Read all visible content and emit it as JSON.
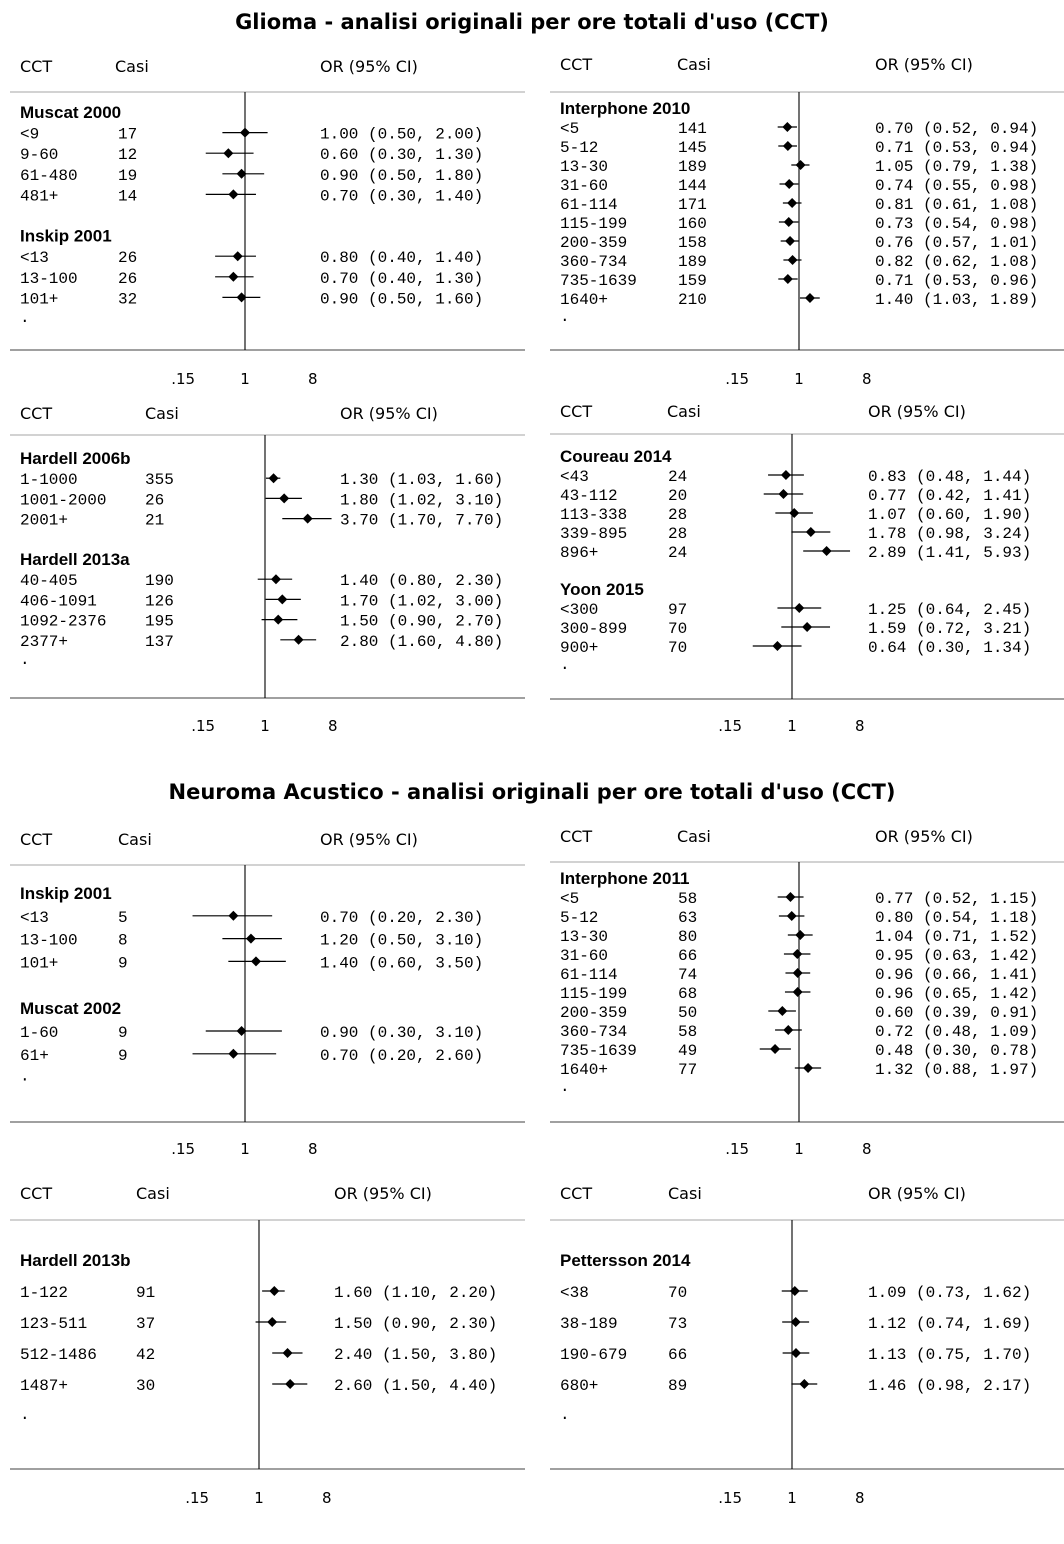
{
  "sections": [
    {
      "title": "Glioma - analisi originali per ore totali d'uso (CCT)"
    },
    {
      "title": "Neuroma Acustico - analisi originali per ore totali d'uso (CCT)"
    }
  ],
  "labels": {
    "col_category": "CCT",
    "col_cases": "Casi",
    "col_or": "OR (95% CI)",
    "filler": "."
  },
  "chart_data": [
    {
      "type": "forest",
      "section": "Glioma",
      "xscale": "log",
      "xticks": [
        ".15",
        "1",
        "8"
      ],
      "reference_line": 1,
      "groups": [
        {
          "name": "Muscat 2000",
          "rows": [
            {
              "label": "<9",
              "cases": 17,
              "or": 1.0,
              "lo": 0.5,
              "hi": 2.0,
              "text": "1.00 (0.50, 2.00)"
            },
            {
              "label": "9-60",
              "cases": 12,
              "or": 0.6,
              "lo": 0.3,
              "hi": 1.3,
              "text": "0.60 (0.30, 1.30)"
            },
            {
              "label": "61-480",
              "cases": 19,
              "or": 0.9,
              "lo": 0.5,
              "hi": 1.8,
              "text": "0.90 (0.50, 1.80)"
            },
            {
              "label": "481+",
              "cases": 14,
              "or": 0.7,
              "lo": 0.3,
              "hi": 1.4,
              "text": "0.70 (0.30, 1.40)"
            }
          ]
        },
        {
          "name": "Inskip 2001",
          "rows": [
            {
              "label": "<13",
              "cases": 26,
              "or": 0.8,
              "lo": 0.4,
              "hi": 1.4,
              "text": "0.80 (0.40, 1.40)"
            },
            {
              "label": "13-100",
              "cases": 26,
              "or": 0.7,
              "lo": 0.4,
              "hi": 1.3,
              "text": "0.70 (0.40, 1.30)"
            },
            {
              "label": "101+",
              "cases": 32,
              "or": 0.9,
              "lo": 0.5,
              "hi": 1.6,
              "text": "0.90 (0.50, 1.60)"
            }
          ]
        }
      ]
    },
    {
      "type": "forest",
      "section": "Glioma",
      "xscale": "log",
      "xticks": [
        ".15",
        "1",
        "8"
      ],
      "reference_line": 1,
      "groups": [
        {
          "name": "Interphone 2010",
          "rows": [
            {
              "label": "<5",
              "cases": 141,
              "or": 0.7,
              "lo": 0.52,
              "hi": 0.94,
              "text": "0.70 (0.52, 0.94)"
            },
            {
              "label": "5-12",
              "cases": 145,
              "or": 0.71,
              "lo": 0.53,
              "hi": 0.94,
              "text": "0.71 (0.53, 0.94)"
            },
            {
              "label": "13-30",
              "cases": 189,
              "or": 1.05,
              "lo": 0.79,
              "hi": 1.38,
              "text": "1.05 (0.79, 1.38)"
            },
            {
              "label": "31-60",
              "cases": 144,
              "or": 0.74,
              "lo": 0.55,
              "hi": 0.98,
              "text": "0.74 (0.55, 0.98)"
            },
            {
              "label": "61-114",
              "cases": 171,
              "or": 0.81,
              "lo": 0.61,
              "hi": 1.08,
              "text": "0.81 (0.61, 1.08)"
            },
            {
              "label": "115-199",
              "cases": 160,
              "or": 0.73,
              "lo": 0.54,
              "hi": 0.98,
              "text": "0.73 (0.54, 0.98)"
            },
            {
              "label": "200-359",
              "cases": 158,
              "or": 0.76,
              "lo": 0.57,
              "hi": 1.01,
              "text": "0.76 (0.57, 1.01)"
            },
            {
              "label": "360-734",
              "cases": 189,
              "or": 0.82,
              "lo": 0.62,
              "hi": 1.08,
              "text": "0.82 (0.62, 1.08)"
            },
            {
              "label": "735-1639",
              "cases": 159,
              "or": 0.71,
              "lo": 0.53,
              "hi": 0.96,
              "text": "0.71 (0.53, 0.96)"
            },
            {
              "label": "1640+",
              "cases": 210,
              "or": 1.4,
              "lo": 1.03,
              "hi": 1.89,
              "text": "1.40 (1.03, 1.89)"
            }
          ]
        }
      ]
    },
    {
      "type": "forest",
      "section": "Glioma",
      "xscale": "log",
      "xticks": [
        ".15",
        "1",
        "8"
      ],
      "reference_line": 1,
      "groups": [
        {
          "name": "Hardell 2006b",
          "rows": [
            {
              "label": "1-1000",
              "cases": 355,
              "or": 1.3,
              "lo": 1.03,
              "hi": 1.6,
              "text": "1.30 (1.03, 1.60)"
            },
            {
              "label": "1001-2000",
              "cases": 26,
              "or": 1.8,
              "lo": 1.02,
              "hi": 3.1,
              "text": "1.80 (1.02, 3.10)"
            },
            {
              "label": "2001+",
              "cases": 21,
              "or": 3.7,
              "lo": 1.7,
              "hi": 7.7,
              "text": "3.70 (1.70, 7.70)"
            }
          ]
        },
        {
          "name": "Hardell 2013a",
          "rows": [
            {
              "label": "40-405",
              "cases": 190,
              "or": 1.4,
              "lo": 0.8,
              "hi": 2.3,
              "text": "1.40 (0.80, 2.30)"
            },
            {
              "label": "406-1091",
              "cases": 126,
              "or": 1.7,
              "lo": 1.02,
              "hi": 3.0,
              "text": "1.70 (1.02, 3.00)"
            },
            {
              "label": "1092-2376",
              "cases": 195,
              "or": 1.5,
              "lo": 0.9,
              "hi": 2.7,
              "text": "1.50 (0.90, 2.70)"
            },
            {
              "label": "2377+",
              "cases": 137,
              "or": 2.8,
              "lo": 1.6,
              "hi": 4.8,
              "text": "2.80 (1.60, 4.80)"
            }
          ]
        }
      ]
    },
    {
      "type": "forest",
      "section": "Glioma",
      "xscale": "log",
      "xticks": [
        ".15",
        "1",
        "8"
      ],
      "reference_line": 1,
      "groups": [
        {
          "name": "Coureau 2014",
          "rows": [
            {
              "label": "<43",
              "cases": 24,
              "or": 0.83,
              "lo": 0.48,
              "hi": 1.44,
              "text": "0.83 (0.48, 1.44)"
            },
            {
              "label": "43-112",
              "cases": 20,
              "or": 0.77,
              "lo": 0.42,
              "hi": 1.41,
              "text": "0.77 (0.42, 1.41)"
            },
            {
              "label": "113-338",
              "cases": 28,
              "or": 1.07,
              "lo": 0.6,
              "hi": 1.9,
              "text": "1.07 (0.60, 1.90)"
            },
            {
              "label": "339-895",
              "cases": 28,
              "or": 1.78,
              "lo": 0.98,
              "hi": 3.24,
              "text": "1.78 (0.98, 3.24)"
            },
            {
              "label": "896+",
              "cases": 24,
              "or": 2.89,
              "lo": 1.41,
              "hi": 5.93,
              "text": "2.89 (1.41, 5.93)"
            }
          ]
        },
        {
          "name": "Yoon 2015",
          "rows": [
            {
              "label": "<300",
              "cases": 97,
              "or": 1.25,
              "lo": 0.64,
              "hi": 2.45,
              "text": "1.25 (0.64, 2.45)"
            },
            {
              "label": "300-899",
              "cases": 70,
              "or": 1.59,
              "lo": 0.72,
              "hi": 3.21,
              "text": "1.59 (0.72, 3.21)"
            },
            {
              "label": "900+",
              "cases": 70,
              "or": 0.64,
              "lo": 0.3,
              "hi": 1.34,
              "text": "0.64 (0.30, 1.34)"
            }
          ]
        }
      ]
    },
    {
      "type": "forest",
      "section": "Neuroma Acustico",
      "xscale": "log",
      "xticks": [
        ".15",
        "1",
        "8"
      ],
      "reference_line": 1,
      "groups": [
        {
          "name": "Inskip 2001",
          "rows": [
            {
              "label": "<13",
              "cases": 5,
              "or": 0.7,
              "lo": 0.2,
              "hi": 2.3,
              "text": "0.70 (0.20, 2.30)"
            },
            {
              "label": "13-100",
              "cases": 8,
              "or": 1.2,
              "lo": 0.5,
              "hi": 3.1,
              "text": "1.20 (0.50, 3.10)"
            },
            {
              "label": "101+",
              "cases": 9,
              "or": 1.4,
              "lo": 0.6,
              "hi": 3.5,
              "text": "1.40 (0.60, 3.50)"
            }
          ]
        },
        {
          "name": "Muscat 2002",
          "rows": [
            {
              "label": "1-60",
              "cases": 9,
              "or": 0.9,
              "lo": 0.3,
              "hi": 3.1,
              "text": "0.90 (0.30, 3.10)"
            },
            {
              "label": "61+",
              "cases": 9,
              "or": 0.7,
              "lo": 0.2,
              "hi": 2.6,
              "text": "0.70 (0.20, 2.60)"
            }
          ]
        }
      ]
    },
    {
      "type": "forest",
      "section": "Neuroma Acustico",
      "xscale": "log",
      "xticks": [
        ".15",
        "1",
        "8"
      ],
      "reference_line": 1,
      "groups": [
        {
          "name": "Interphone 2011",
          "rows": [
            {
              "label": "<5",
              "cases": 58,
              "or": 0.77,
              "lo": 0.52,
              "hi": 1.15,
              "text": "0.77 (0.52, 1.15)"
            },
            {
              "label": "5-12",
              "cases": 63,
              "or": 0.8,
              "lo": 0.54,
              "hi": 1.18,
              "text": "0.80 (0.54, 1.18)"
            },
            {
              "label": "13-30",
              "cases": 80,
              "or": 1.04,
              "lo": 0.71,
              "hi": 1.52,
              "text": "1.04 (0.71, 1.52)"
            },
            {
              "label": "31-60",
              "cases": 66,
              "or": 0.95,
              "lo": 0.63,
              "hi": 1.42,
              "text": "0.95 (0.63, 1.42)"
            },
            {
              "label": "61-114",
              "cases": 74,
              "or": 0.96,
              "lo": 0.66,
              "hi": 1.41,
              "text": "0.96 (0.66, 1.41)"
            },
            {
              "label": "115-199",
              "cases": 68,
              "or": 0.96,
              "lo": 0.65,
              "hi": 1.42,
              "text": "0.96 (0.65, 1.42)"
            },
            {
              "label": "200-359",
              "cases": 50,
              "or": 0.6,
              "lo": 0.39,
              "hi": 0.91,
              "text": "0.60 (0.39, 0.91)"
            },
            {
              "label": "360-734",
              "cases": 58,
              "or": 0.72,
              "lo": 0.48,
              "hi": 1.09,
              "text": "0.72 (0.48, 1.09)"
            },
            {
              "label": "735-1639",
              "cases": 49,
              "or": 0.48,
              "lo": 0.3,
              "hi": 0.78,
              "text": "0.48 (0.30, 0.78)"
            },
            {
              "label": "1640+",
              "cases": 77,
              "or": 1.32,
              "lo": 0.88,
              "hi": 1.97,
              "text": "1.32 (0.88, 1.97)"
            }
          ]
        }
      ]
    },
    {
      "type": "forest",
      "section": "Neuroma Acustico",
      "xscale": "log",
      "xticks": [
        ".15",
        "1",
        "8"
      ],
      "reference_line": 1,
      "groups": [
        {
          "name": "Hardell 2013b",
          "rows": [
            {
              "label": "1-122",
              "cases": 91,
              "or": 1.6,
              "lo": 1.1,
              "hi": 2.2,
              "text": "1.60 (1.10, 2.20)"
            },
            {
              "label": "123-511",
              "cases": 37,
              "or": 1.5,
              "lo": 0.9,
              "hi": 2.3,
              "text": "1.50 (0.90, 2.30)"
            },
            {
              "label": "512-1486",
              "cases": 42,
              "or": 2.4,
              "lo": 1.5,
              "hi": 3.8,
              "text": "2.40 (1.50, 3.80)"
            },
            {
              "label": "1487+",
              "cases": 30,
              "or": 2.6,
              "lo": 1.5,
              "hi": 4.4,
              "text": "2.60 (1.50, 4.40)"
            }
          ]
        }
      ]
    },
    {
      "type": "forest",
      "section": "Neuroma Acustico",
      "xscale": "log",
      "xticks": [
        ".15",
        "1",
        "8"
      ],
      "reference_line": 1,
      "groups": [
        {
          "name": "Pettersson 2014",
          "rows": [
            {
              "label": "<38",
              "cases": 70,
              "or": 1.09,
              "lo": 0.73,
              "hi": 1.62,
              "text": "1.09 (0.73, 1.62)"
            },
            {
              "label": "38-189",
              "cases": 73,
              "or": 1.12,
              "lo": 0.74,
              "hi": 1.69,
              "text": "1.12 (0.74, 1.69)"
            },
            {
              "label": "190-679",
              "cases": 66,
              "or": 1.13,
              "lo": 0.75,
              "hi": 1.7,
              "text": "1.13 (0.75, 1.70)"
            },
            {
              "label": "680+",
              "cases": 89,
              "or": 1.46,
              "lo": 0.98,
              "hi": 2.17,
              "text": "1.46 (0.98, 2.17)"
            }
          ]
        }
      ]
    }
  ]
}
